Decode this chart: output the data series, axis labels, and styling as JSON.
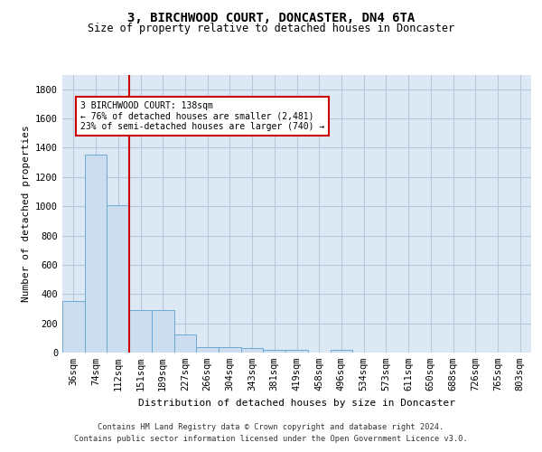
{
  "title": "3, BIRCHWOOD COURT, DONCASTER, DN4 6TA",
  "subtitle": "Size of property relative to detached houses in Doncaster",
  "xlabel": "Distribution of detached houses by size in Doncaster",
  "ylabel": "Number of detached properties",
  "footnote1": "Contains HM Land Registry data © Crown copyright and database right 2024.",
  "footnote2": "Contains public sector information licensed under the Open Government Licence v3.0.",
  "bar_color": "#ccddf0",
  "bar_edge_color": "#6aaad4",
  "grid_color": "#b8c8dc",
  "background_color": "#dce8f4",
  "categories": [
    "36sqm",
    "74sqm",
    "112sqm",
    "151sqm",
    "189sqm",
    "227sqm",
    "266sqm",
    "304sqm",
    "343sqm",
    "381sqm",
    "419sqm",
    "458sqm",
    "496sqm",
    "534sqm",
    "573sqm",
    "611sqm",
    "650sqm",
    "688sqm",
    "726sqm",
    "765sqm",
    "803sqm"
  ],
  "values": [
    355,
    1355,
    1010,
    290,
    290,
    125,
    40,
    35,
    30,
    20,
    20,
    0,
    20,
    0,
    0,
    0,
    0,
    0,
    0,
    0,
    0
  ],
  "vline_x": 2.5,
  "vline_color": "#cc0000",
  "annotation_line1": "3 BIRCHWOOD COURT: 138sqm",
  "annotation_line2": "← 76% of detached houses are smaller (2,481)",
  "annotation_line3": "23% of semi-detached houses are larger (740) →",
  "annotation_box_color": "#ffffff",
  "annotation_box_edge": "#cc0000",
  "ylim": [
    0,
    1900
  ],
  "yticks": [
    0,
    200,
    400,
    600,
    800,
    1000,
    1200,
    1400,
    1600,
    1800
  ],
  "title_fontsize": 10,
  "subtitle_fontsize": 8.5,
  "ylabel_fontsize": 8,
  "xlabel_fontsize": 8,
  "tick_fontsize": 7.5,
  "footnote_fontsize": 6.2
}
